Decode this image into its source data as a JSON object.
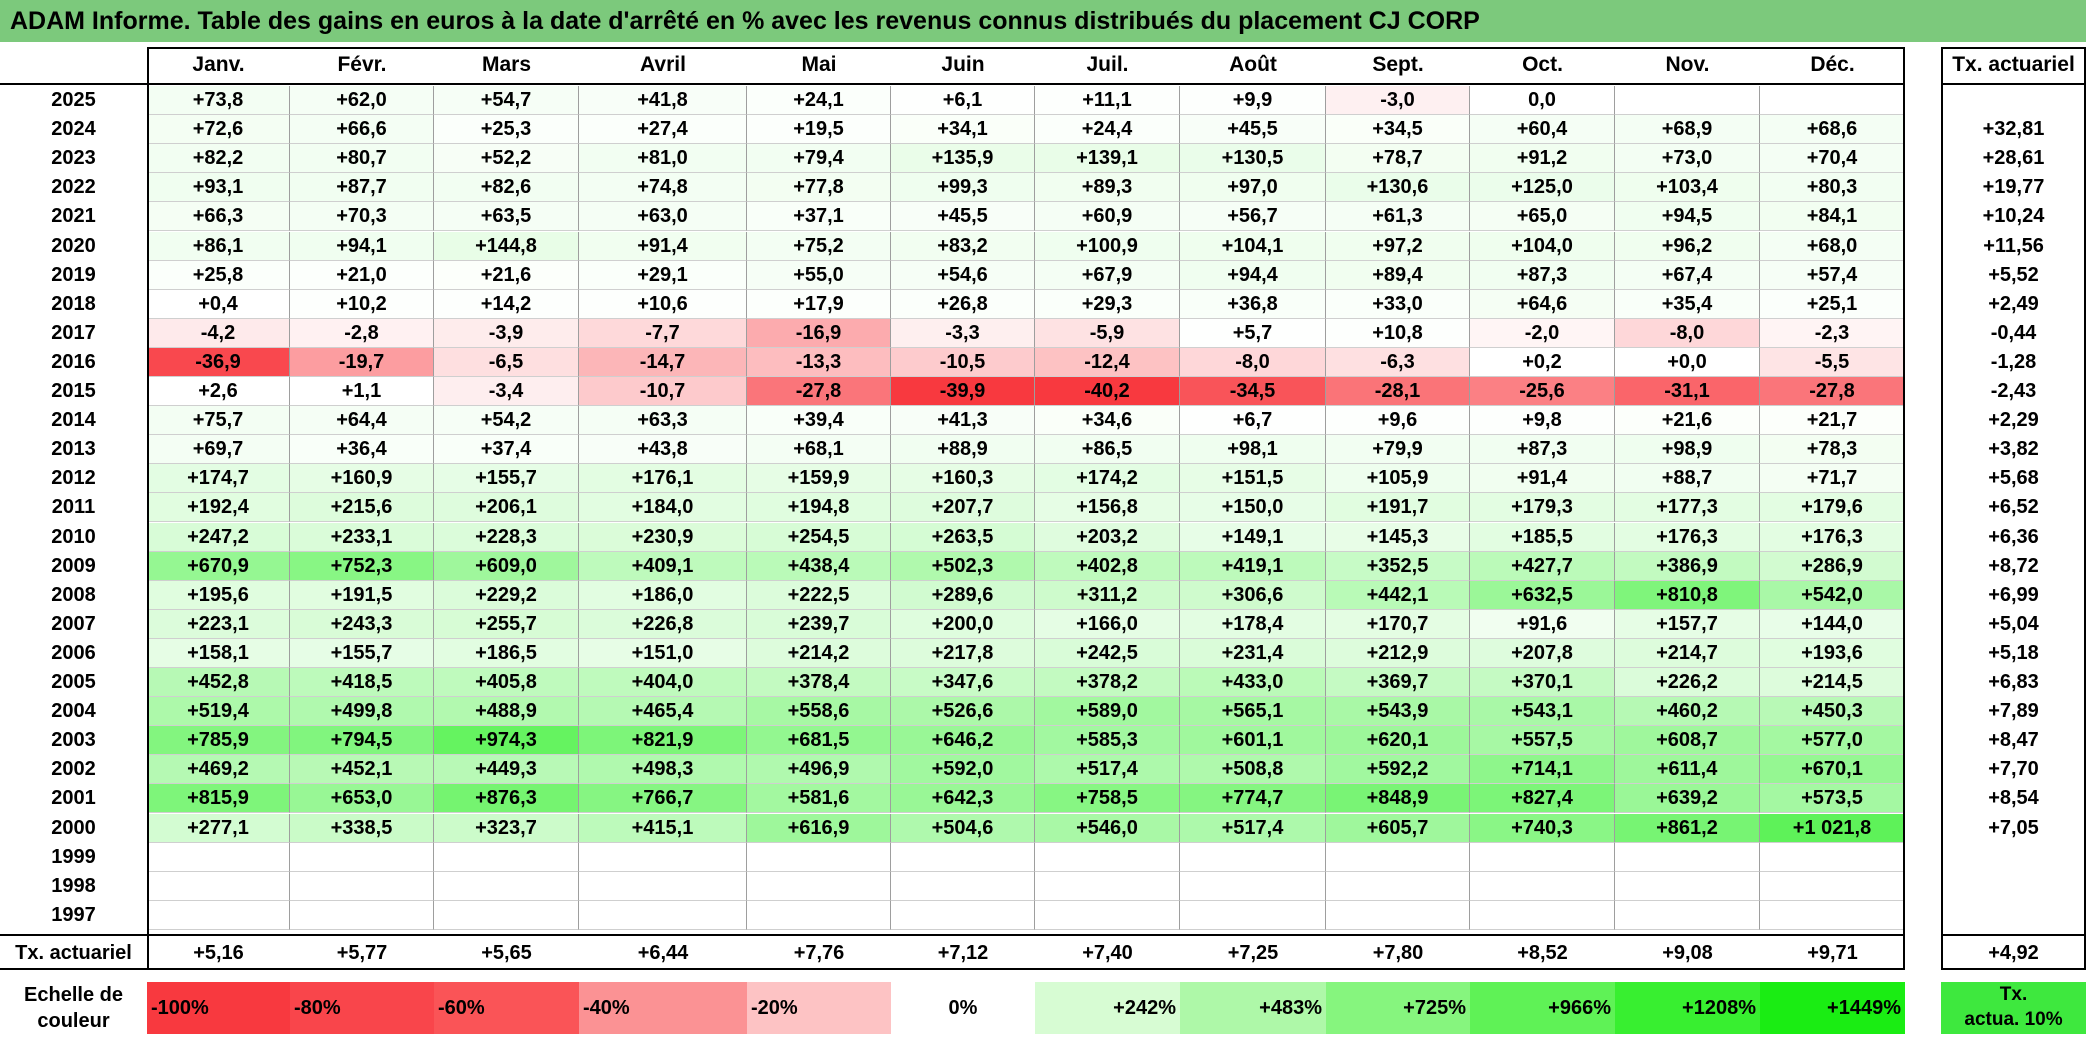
{
  "title": "ADAM Informe. Table des gains en euros à la date d'arrêté en % avec les revenus connus distribués du placement CJ CORP",
  "chart_data": {
    "type": "heatmap",
    "title": "ADAM Informe. Table des gains en euros à la date d'arrêté en % avec les revenus connus distribués du placement CJ CORP",
    "months": [
      "Janv.",
      "Févr.",
      "Mars",
      "Avril",
      "Mai",
      "Juin",
      "Juil.",
      "Août",
      "Sept.",
      "Oct.",
      "Nov.",
      "Déc."
    ],
    "actuarial_header": "Tx. actuariel",
    "rows": [
      {
        "year": "2025",
        "values": [
          "+73,8",
          "+62,0",
          "+54,7",
          "+41,8",
          "+24,1",
          "+6,1",
          "+11,1",
          "+9,9",
          "-3,0",
          "0,0",
          "",
          ""
        ],
        "rate": ""
      },
      {
        "year": "2024",
        "values": [
          "+72,6",
          "+66,6",
          "+25,3",
          "+27,4",
          "+19,5",
          "+34,1",
          "+24,4",
          "+45,5",
          "+34,5",
          "+60,4",
          "+68,9",
          "+68,6"
        ],
        "rate": "+32,81"
      },
      {
        "year": "2023",
        "values": [
          "+82,2",
          "+80,7",
          "+52,2",
          "+81,0",
          "+79,4",
          "+135,9",
          "+139,1",
          "+130,5",
          "+78,7",
          "+91,2",
          "+73,0",
          "+70,4"
        ],
        "rate": "+28,61"
      },
      {
        "year": "2022",
        "values": [
          "+93,1",
          "+87,7",
          "+82,6",
          "+74,8",
          "+77,8",
          "+99,3",
          "+89,3",
          "+97,0",
          "+130,6",
          "+125,0",
          "+103,4",
          "+80,3"
        ],
        "rate": "+19,77"
      },
      {
        "year": "2021",
        "values": [
          "+66,3",
          "+70,3",
          "+63,5",
          "+63,0",
          "+37,1",
          "+45,5",
          "+60,9",
          "+56,7",
          "+61,3",
          "+65,0",
          "+94,5",
          "+84,1"
        ],
        "rate": "+10,24"
      },
      {
        "year": "2020",
        "values": [
          "+86,1",
          "+94,1",
          "+144,8",
          "+91,4",
          "+75,2",
          "+83,2",
          "+100,9",
          "+104,1",
          "+97,2",
          "+104,0",
          "+96,2",
          "+68,0"
        ],
        "rate": "+11,56"
      },
      {
        "year": "2019",
        "values": [
          "+25,8",
          "+21,0",
          "+21,6",
          "+29,1",
          "+55,0",
          "+54,6",
          "+67,9",
          "+94,4",
          "+89,4",
          "+87,3",
          "+67,4",
          "+57,4"
        ],
        "rate": "+5,52"
      },
      {
        "year": "2018",
        "values": [
          "+0,4",
          "+10,2",
          "+14,2",
          "+10,6",
          "+17,9",
          "+26,8",
          "+29,3",
          "+36,8",
          "+33,0",
          "+64,6",
          "+35,4",
          "+25,1"
        ],
        "rate": "+2,49"
      },
      {
        "year": "2017",
        "values": [
          "-4,2",
          "-2,8",
          "-3,9",
          "-7,7",
          "-16,9",
          "-3,3",
          "-5,9",
          "+5,7",
          "+10,8",
          "-2,0",
          "-8,0",
          "-2,3"
        ],
        "rate": "-0,44"
      },
      {
        "year": "2016",
        "values": [
          "-36,9",
          "-19,7",
          "-6,5",
          "-14,7",
          "-13,3",
          "-10,5",
          "-12,4",
          "-8,0",
          "-6,3",
          "+0,2",
          "+0,0",
          "-5,5"
        ],
        "rate": "-1,28"
      },
      {
        "year": "2015",
        "values": [
          "+2,6",
          "+1,1",
          "-3,4",
          "-10,7",
          "-27,8",
          "-39,9",
          "-40,2",
          "-34,5",
          "-28,1",
          "-25,6",
          "-31,1",
          "-27,8"
        ],
        "rate": "-2,43"
      },
      {
        "year": "2014",
        "values": [
          "+75,7",
          "+64,4",
          "+54,2",
          "+63,3",
          "+39,4",
          "+41,3",
          "+34,6",
          "+6,7",
          "+9,6",
          "+9,8",
          "+21,6",
          "+21,7"
        ],
        "rate": "+2,29"
      },
      {
        "year": "2013",
        "values": [
          "+69,7",
          "+36,4",
          "+37,4",
          "+43,8",
          "+68,1",
          "+88,9",
          "+86,5",
          "+98,1",
          "+79,9",
          "+87,3",
          "+98,9",
          "+78,3"
        ],
        "rate": "+3,82"
      },
      {
        "year": "2012",
        "values": [
          "+174,7",
          "+160,9",
          "+155,7",
          "+176,1",
          "+159,9",
          "+160,3",
          "+174,2",
          "+151,5",
          "+105,9",
          "+91,4",
          "+88,7",
          "+71,7"
        ],
        "rate": "+5,68"
      },
      {
        "year": "2011",
        "values": [
          "+192,4",
          "+215,6",
          "+206,1",
          "+184,0",
          "+194,8",
          "+207,7",
          "+156,8",
          "+150,0",
          "+191,7",
          "+179,3",
          "+177,3",
          "+179,6"
        ],
        "rate": "+6,52"
      },
      {
        "year": "2010",
        "values": [
          "+247,2",
          "+233,1",
          "+228,3",
          "+230,9",
          "+254,5",
          "+263,5",
          "+203,2",
          "+149,1",
          "+145,3",
          "+185,5",
          "+176,3",
          "+176,3"
        ],
        "rate": "+6,36"
      },
      {
        "year": "2009",
        "values": [
          "+670,9",
          "+752,3",
          "+609,0",
          "+409,1",
          "+438,4",
          "+502,3",
          "+402,8",
          "+419,1",
          "+352,5",
          "+427,7",
          "+386,9",
          "+286,9"
        ],
        "rate": "+8,72"
      },
      {
        "year": "2008",
        "values": [
          "+195,6",
          "+191,5",
          "+229,2",
          "+186,0",
          "+222,5",
          "+289,6",
          "+311,2",
          "+306,6",
          "+442,1",
          "+632,5",
          "+810,8",
          "+542,0"
        ],
        "rate": "+6,99"
      },
      {
        "year": "2007",
        "values": [
          "+223,1",
          "+243,3",
          "+255,7",
          "+226,8",
          "+239,7",
          "+200,0",
          "+166,0",
          "+178,4",
          "+170,7",
          "+91,6",
          "+157,7",
          "+144,0"
        ],
        "rate": "+5,04"
      },
      {
        "year": "2006",
        "values": [
          "+158,1",
          "+155,7",
          "+186,5",
          "+151,0",
          "+214,2",
          "+217,8",
          "+242,5",
          "+231,4",
          "+212,9",
          "+207,8",
          "+214,7",
          "+193,6"
        ],
        "rate": "+5,18"
      },
      {
        "year": "2005",
        "values": [
          "+452,8",
          "+418,5",
          "+405,8",
          "+404,0",
          "+378,4",
          "+347,6",
          "+378,2",
          "+433,0",
          "+369,7",
          "+370,1",
          "+226,2",
          "+214,5"
        ],
        "rate": "+6,83"
      },
      {
        "year": "2004",
        "values": [
          "+519,4",
          "+499,8",
          "+488,9",
          "+465,4",
          "+558,6",
          "+526,6",
          "+589,0",
          "+565,1",
          "+543,9",
          "+543,1",
          "+460,2",
          "+450,3"
        ],
        "rate": "+7,89"
      },
      {
        "year": "2003",
        "values": [
          "+785,9",
          "+794,5",
          "+974,3",
          "+821,9",
          "+681,5",
          "+646,2",
          "+585,3",
          "+601,1",
          "+620,1",
          "+557,5",
          "+608,7",
          "+577,0"
        ],
        "rate": "+8,47"
      },
      {
        "year": "2002",
        "values": [
          "+469,2",
          "+452,1",
          "+449,3",
          "+498,3",
          "+496,9",
          "+592,0",
          "+517,4",
          "+508,8",
          "+592,2",
          "+714,1",
          "+611,4",
          "+670,1"
        ],
        "rate": "+7,70"
      },
      {
        "year": "2001",
        "values": [
          "+815,9",
          "+653,0",
          "+876,3",
          "+766,7",
          "+581,6",
          "+642,3",
          "+758,5",
          "+774,7",
          "+848,9",
          "+827,4",
          "+639,2",
          "+573,5"
        ],
        "rate": "+8,54"
      },
      {
        "year": "2000",
        "values": [
          "+277,1",
          "+338,5",
          "+323,7",
          "+415,1",
          "+616,9",
          "+504,6",
          "+546,0",
          "+517,4",
          "+605,7",
          "+740,3",
          "+861,2",
          "+1 021,8"
        ],
        "rate": "+7,05"
      },
      {
        "year": "1999",
        "values": [
          "",
          "",
          "",
          "",
          "",
          "",
          "",
          "",
          "",
          "",
          "",
          ""
        ],
        "rate": ""
      },
      {
        "year": "1998",
        "values": [
          "",
          "",
          "",
          "",
          "",
          "",
          "",
          "",
          "",
          "",
          "",
          ""
        ],
        "rate": ""
      },
      {
        "year": "1997",
        "values": [
          "",
          "",
          "",
          "",
          "",
          "",
          "",
          "",
          "",
          "",
          "",
          ""
        ],
        "rate": ""
      }
    ],
    "footer": {
      "label": "Tx. actuariel",
      "values": [
        "+5,16",
        "+5,77",
        "+5,65",
        "+6,44",
        "+7,76",
        "+7,12",
        "+7,40",
        "+7,25",
        "+7,80",
        "+8,52",
        "+9,08",
        "+9,71"
      ],
      "overall": "+4,92"
    },
    "scale": {
      "label_line1": "Echelle de",
      "label_line2": "couleur",
      "steps": [
        {
          "label": "-100%",
          "color": "#f8393f",
          "align": "left"
        },
        {
          "label": "-80%",
          "color": "#f9454b",
          "align": "left"
        },
        {
          "label": "-60%",
          "color": "#fa5457",
          "align": "left"
        },
        {
          "label": "-40%",
          "color": "#fb9294",
          "align": "left"
        },
        {
          "label": "-20%",
          "color": "#fdc3c4",
          "align": "left"
        },
        {
          "label": "0%",
          "color": "#ffffff",
          "align": "center"
        },
        {
          "label": "+242%",
          "color": "#d7fcd3",
          "align": "right"
        },
        {
          "label": "+483%",
          "color": "#aef8a8",
          "align": "right"
        },
        {
          "label": "+725%",
          "color": "#86f57e",
          "align": "right"
        },
        {
          "label": "+966%",
          "color": "#5ff256",
          "align": "right"
        },
        {
          "label": "+1208%",
          "color": "#38ef30",
          "align": "right"
        },
        {
          "label": "+1449%",
          "color": "#1aed13",
          "align": "right"
        }
      ],
      "legend_line1": "Tx.",
      "legend_line2": "actua. 10%",
      "legend_color": "#3ee83e"
    },
    "colors": {
      "header": "#7cc97c",
      "negative_max": "#f8393f",
      "positive_max": "#1aed13"
    }
  }
}
